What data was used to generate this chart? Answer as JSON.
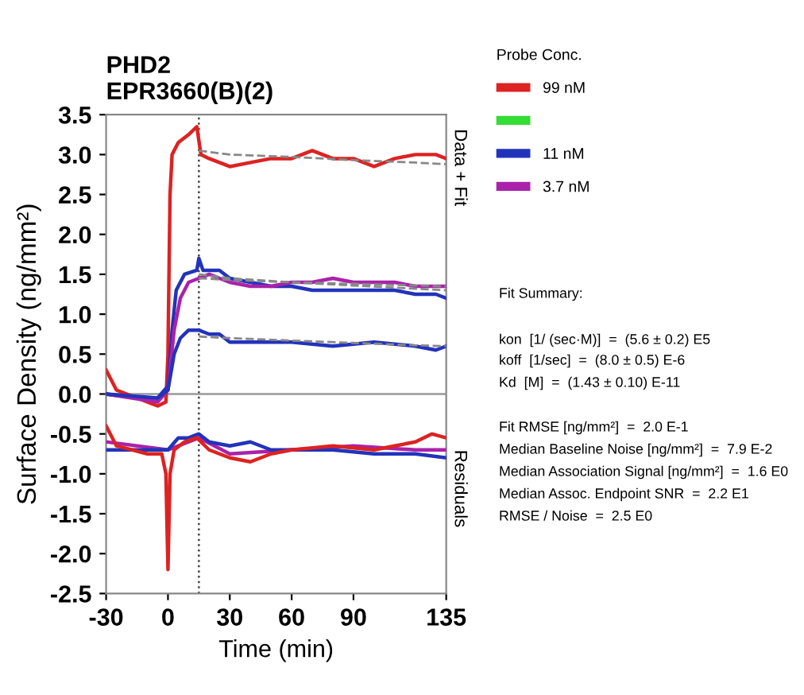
{
  "chart_data": {
    "type": "line",
    "title": "PHD2\nEPR3660(B)(2)",
    "xlabel": "Time (min)",
    "ylabel": "Surface Density (ng/mm²)",
    "legend_title": "Probe Conc.",
    "xlim": [
      -30,
      135
    ],
    "xticks": [
      -30,
      0,
      30,
      60,
      90,
      135
    ],
    "ylim": [
      -2.5,
      3.5
    ],
    "yticks": [
      {
        "value": -2.5,
        "label": "-2.5"
      },
      {
        "value": -2.0,
        "label": "-2.0"
      },
      {
        "value": -1.5,
        "label": "-1.5"
      },
      {
        "value": -1.0,
        "label": "-1.0"
      },
      {
        "value": -0.5,
        "label": "-0.5"
      },
      {
        "value": 0,
        "label": "0.0"
      },
      {
        "value": 0.5,
        "label": "0.5"
      },
      {
        "value": 1.0,
        "label": "1.0"
      },
      {
        "value": 1.5,
        "label": "1.5"
      },
      {
        "value": 2.0,
        "label": "2.0"
      },
      {
        "value": 2.5,
        "label": "2.5"
      },
      {
        "value": 3.0,
        "label": "3.0"
      },
      {
        "value": 3.5,
        "label": "3.5"
      }
    ],
    "grid": false,
    "legend": "right",
    "marker": "none",
    "line_style": "solid",
    "ref_lines": [
      {
        "axis": "x",
        "value": 15,
        "line_style": "dotted",
        "color": "#444444"
      },
      {
        "axis": "y",
        "value": 0,
        "line_style": "solid",
        "color": "#999999"
      }
    ],
    "series": [
      {
        "name": "99 nM",
        "color": "#dd2222",
        "x": [
          -30,
          -25,
          -15,
          -5,
          -1,
          0,
          1,
          2,
          5,
          10,
          14,
          16,
          20,
          30,
          40,
          50,
          60,
          70,
          80,
          90,
          100,
          110,
          120,
          130,
          135
        ],
        "values": [
          0.3,
          0.05,
          -0.05,
          -0.15,
          -0.1,
          0.5,
          2.5,
          3.0,
          3.15,
          3.25,
          3.35,
          3.0,
          2.95,
          2.85,
          2.9,
          2.95,
          2.95,
          3.05,
          2.95,
          2.95,
          2.85,
          2.95,
          3.0,
          3.0,
          2.95
        ]
      },
      {
        "color": "#33dd33"
      },
      {
        "name": "11 nM",
        "color": "#2233bb",
        "x": [
          -30,
          -15,
          -5,
          0,
          2,
          4,
          8,
          14,
          15,
          17,
          25,
          30,
          40,
          50,
          60,
          70,
          80,
          90,
          100,
          110,
          120,
          130,
          135
        ],
        "values": [
          0.0,
          -0.05,
          -0.05,
          0.1,
          0.8,
          1.3,
          1.5,
          1.55,
          1.7,
          1.55,
          1.55,
          1.45,
          1.4,
          1.35,
          1.35,
          1.3,
          1.3,
          1.3,
          1.3,
          1.3,
          1.25,
          1.25,
          1.2
        ]
      },
      {
        "name": "3.7 nM",
        "color": "#aa22aa",
        "x": [
          -30,
          -5,
          0,
          3,
          6,
          10,
          15,
          20,
          30,
          40,
          50,
          60,
          70,
          80,
          90,
          100,
          110,
          120,
          135
        ],
        "values": [
          0.0,
          -0.1,
          0.05,
          0.8,
          1.2,
          1.4,
          1.45,
          1.5,
          1.4,
          1.35,
          1.35,
          1.4,
          1.4,
          1.45,
          1.4,
          1.4,
          1.4,
          1.35,
          1.35
        ]
      },
      {
        "color": "#2233bb",
        "x": [
          -30,
          -5,
          0,
          3,
          6,
          10,
          15,
          20,
          25,
          30,
          40,
          60,
          80,
          100,
          120,
          130,
          135
        ],
        "values": [
          0.0,
          -0.05,
          0.05,
          0.5,
          0.7,
          0.8,
          0.8,
          0.75,
          0.75,
          0.65,
          0.65,
          0.65,
          0.6,
          0.65,
          0.6,
          0.55,
          0.6
        ]
      },
      {
        "color": "#888888",
        "line_style": "dashed",
        "x": [
          15,
          30,
          60,
          90,
          120,
          135
        ],
        "values": [
          3.05,
          3.0,
          2.97,
          2.93,
          2.9,
          2.88
        ]
      },
      {
        "color": "#888888",
        "line_style": "dashed",
        "x": [
          15,
          30,
          60,
          90,
          120,
          135
        ],
        "values": [
          1.5,
          1.45,
          1.4,
          1.36,
          1.32,
          1.3
        ]
      },
      {
        "color": "#888888",
        "line_style": "dashed",
        "x": [
          15,
          30,
          60,
          90,
          120,
          135
        ],
        "values": [
          1.45,
          1.43,
          1.4,
          1.38,
          1.36,
          1.35
        ]
      },
      {
        "color": "#888888",
        "line_style": "dashed",
        "x": [
          15,
          30,
          60,
          90,
          120,
          135
        ],
        "values": [
          0.72,
          0.7,
          0.67,
          0.64,
          0.61,
          0.6
        ]
      },
      {
        "color": "#aa22aa",
        "x": [
          -30,
          0,
          15,
          30,
          60,
          90,
          120,
          135
        ],
        "values": [
          -0.6,
          -0.7,
          -0.55,
          -0.75,
          -0.7,
          -0.65,
          -0.7,
          -0.7
        ]
      },
      {
        "color": "#2233bb",
        "x": [
          -30,
          -15,
          0,
          5,
          10,
          15,
          20,
          30,
          40,
          50,
          60,
          80,
          100,
          120,
          135
        ],
        "values": [
          -0.7,
          -0.7,
          -0.7,
          -0.55,
          -0.55,
          -0.5,
          -0.6,
          -0.65,
          -0.6,
          -0.7,
          -0.7,
          -0.7,
          -0.75,
          -0.75,
          -0.8
        ]
      },
      {
        "color": "#dd2222",
        "x": [
          -30,
          -25,
          -10,
          -3,
          -1,
          0,
          1,
          3,
          8,
          14,
          20,
          30,
          40,
          50,
          60,
          80,
          100,
          110,
          120,
          128,
          135
        ],
        "values": [
          -0.4,
          -0.65,
          -0.75,
          -0.75,
          -1.0,
          -2.2,
          -1.0,
          -0.7,
          -0.6,
          -0.55,
          -0.7,
          -0.8,
          -0.85,
          -0.75,
          -0.7,
          -0.65,
          -0.7,
          -0.65,
          -0.6,
          -0.5,
          -0.55
        ]
      }
    ],
    "annotations": [
      "Data + Fit",
      "Residuals",
      "Fit Summary:",
      "kon  [1/ (sec·M)]  =  (5.6 ± 0.2) E5",
      "koff  [1/sec]  =  (8.0 ± 0.5) E-6",
      "Kd  [M]  =  (1.43 ± 0.10) E-11",
      "Fit RMSE [ng/mm²]  =  2.0 E-1",
      "Median Baseline Noise [ng/mm²]  =  7.9 E-2",
      "Median Association Signal [ng/mm²]  =  1.6 E0",
      "Median Assoc. Endpoint SNR  =  2.2 E1",
      "RMSE / Noise  =  2.5 E0"
    ]
  }
}
